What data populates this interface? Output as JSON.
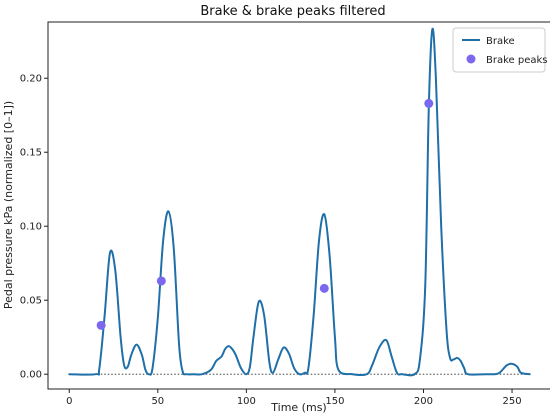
{
  "chart_data": {
    "type": "line",
    "title": "Brake & brake peaks filtered",
    "xlabel": "Time (ms)",
    "ylabel": "Pedal pressure kPa (normalized [0–1])",
    "xlim": [
      -12,
      272
    ],
    "ylim": [
      -0.01,
      0.238
    ],
    "xticks": [
      0,
      50,
      100,
      150,
      200,
      250
    ],
    "yticks": [
      0.0,
      0.05,
      0.1,
      0.15,
      0.2
    ],
    "ytick_labels": [
      "0.00",
      "0.05",
      "0.10",
      "0.15",
      "0.20"
    ],
    "grid": false,
    "legend_position": "top-right",
    "baseline": {
      "y": 0,
      "x_start": 0,
      "x_end": 260,
      "style": "dotted"
    },
    "series": [
      {
        "name": "Brake",
        "kind": "line",
        "color": "#1f6fa8",
        "x": [
          0,
          15,
          17,
          20,
          23,
          26,
          29,
          31,
          33,
          35,
          38,
          41,
          43,
          45,
          47,
          50,
          53,
          56,
          59,
          62,
          64,
          66,
          70,
          75,
          80,
          83,
          86,
          88,
          90,
          92,
          94,
          97,
          100,
          102,
          104,
          107,
          110,
          113,
          115,
          118,
          121,
          124,
          127,
          130,
          133,
          135,
          138,
          141,
          144,
          147,
          150,
          152,
          160,
          168,
          171,
          175,
          179,
          182,
          185,
          188,
          195,
          198,
          201,
          203,
          205,
          207,
          210,
          213,
          215,
          217,
          219,
          221,
          223,
          225,
          235,
          240,
          243,
          247,
          250,
          253,
          255,
          260
        ],
        "y": [
          0,
          0,
          0.004,
          0.04,
          0.082,
          0.07,
          0.025,
          0.006,
          0.005,
          0.013,
          0.02,
          0.013,
          0.003,
          0,
          0.004,
          0.038,
          0.09,
          0.11,
          0.085,
          0.02,
          0.002,
          0,
          0,
          0,
          0.003,
          0.009,
          0.012,
          0.017,
          0.019,
          0.017,
          0.013,
          0.004,
          0,
          0.005,
          0.025,
          0.049,
          0.04,
          0.008,
          0.001,
          0.01,
          0.018,
          0.014,
          0.004,
          0,
          0.001,
          0.004,
          0.04,
          0.09,
          0.108,
          0.08,
          0.025,
          0.003,
          0,
          0,
          0.006,
          0.018,
          0.023,
          0.012,
          0.001,
          0,
          0,
          0.01,
          0.06,
          0.18,
          0.233,
          0.2,
          0.1,
          0.03,
          0.011,
          0.01,
          0.011,
          0.009,
          0.004,
          0,
          0,
          0,
          0.001,
          0.006,
          0.007,
          0.005,
          0.001,
          0
        ]
      },
      {
        "name": "Brake peaks",
        "kind": "scatter",
        "color": "#7b68ee",
        "x": [
          18,
          52,
          144,
          203
        ],
        "y": [
          0.033,
          0.063,
          0.058,
          0.183
        ]
      }
    ]
  }
}
